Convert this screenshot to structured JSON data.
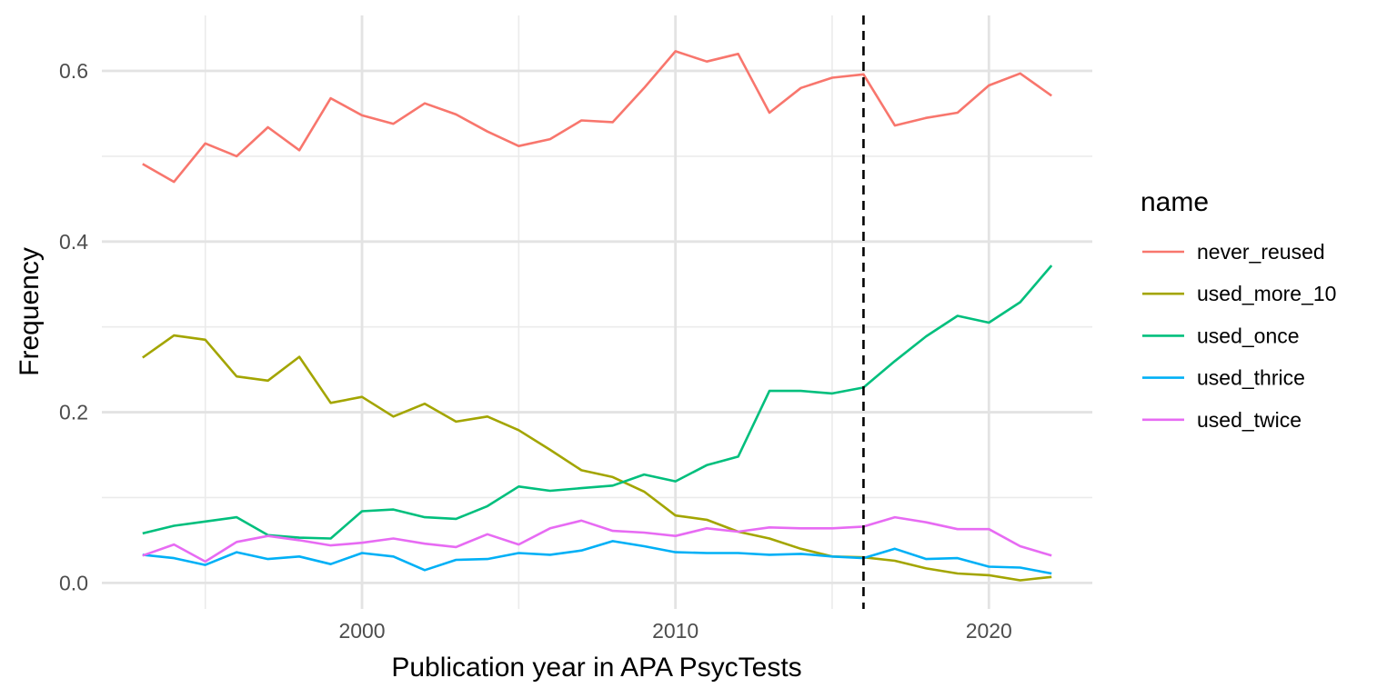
{
  "chart_data": {
    "type": "line",
    "title": "",
    "xlabel": "Publication year in APA PsycTests",
    "ylabel": "Frequency",
    "xlim": [
      1991.7,
      2023.3
    ],
    "ylim": [
      -0.0305,
      0.665
    ],
    "x_ticks": [
      2000,
      2010,
      2020
    ],
    "x_minor_ticks": [
      1995,
      2005,
      2015
    ],
    "y_ticks": [
      0.0,
      0.2,
      0.4,
      0.6
    ],
    "y_tick_labels": [
      "0.0",
      "0.2",
      "0.4",
      "0.6"
    ],
    "y_minor_ticks": [
      0.1,
      0.3,
      0.5
    ],
    "grid": true,
    "vline": {
      "x": 2016,
      "style": "dashed",
      "color": "#000000"
    },
    "legend": {
      "title": "name",
      "position": "right"
    },
    "x": [
      1993,
      1994,
      1995,
      1996,
      1997,
      1998,
      1999,
      2000,
      2001,
      2002,
      2003,
      2004,
      2005,
      2006,
      2007,
      2008,
      2009,
      2010,
      2011,
      2012,
      2013,
      2014,
      2015,
      2016,
      2017,
      2018,
      2019,
      2020,
      2021,
      2022
    ],
    "series": [
      {
        "name": "never_reused",
        "color": "#F8766D",
        "values": [
          0.491,
          0.47,
          0.515,
          0.5,
          0.534,
          0.507,
          0.568,
          0.548,
          0.538,
          0.562,
          0.549,
          0.529,
          0.512,
          0.52,
          0.542,
          0.54,
          0.58,
          0.623,
          0.611,
          0.62,
          0.551,
          0.58,
          0.592,
          0.596,
          0.536,
          0.545,
          0.551,
          0.583,
          0.597,
          0.571
        ]
      },
      {
        "name": "used_more_10",
        "color": "#A3A500",
        "values": [
          0.264,
          0.29,
          0.285,
          0.242,
          0.237,
          0.265,
          0.211,
          0.218,
          0.195,
          0.21,
          0.189,
          0.195,
          0.179,
          0.156,
          0.132,
          0.124,
          0.107,
          0.079,
          0.074,
          0.06,
          0.052,
          0.04,
          0.031,
          0.03,
          0.026,
          0.017,
          0.011,
          0.009,
          0.003,
          0.007
        ]
      },
      {
        "name": "used_once",
        "color": "#00BF7D",
        "values": [
          0.058,
          0.067,
          0.072,
          0.077,
          0.056,
          0.053,
          0.052,
          0.084,
          0.086,
          0.077,
          0.075,
          0.09,
          0.113,
          0.108,
          0.111,
          0.114,
          0.127,
          0.119,
          0.138,
          0.148,
          0.225,
          0.225,
          0.222,
          0.229,
          0.26,
          0.289,
          0.313,
          0.305,
          0.329,
          0.372
        ]
      },
      {
        "name": "used_thrice",
        "color": "#00B0F6",
        "values": [
          0.033,
          0.029,
          0.021,
          0.036,
          0.028,
          0.031,
          0.022,
          0.035,
          0.031,
          0.015,
          0.027,
          0.028,
          0.035,
          0.033,
          0.038,
          0.049,
          0.043,
          0.036,
          0.035,
          0.035,
          0.033,
          0.034,
          0.031,
          0.029,
          0.04,
          0.028,
          0.029,
          0.019,
          0.018,
          0.011
        ]
      },
      {
        "name": "used_twice",
        "color": "#E76BF3",
        "values": [
          0.032,
          0.045,
          0.025,
          0.048,
          0.055,
          0.05,
          0.044,
          0.047,
          0.052,
          0.046,
          0.042,
          0.057,
          0.045,
          0.064,
          0.073,
          0.061,
          0.059,
          0.055,
          0.064,
          0.06,
          0.065,
          0.064,
          0.064,
          0.066,
          0.077,
          0.071,
          0.063,
          0.063,
          0.043,
          0.032
        ]
      }
    ]
  }
}
